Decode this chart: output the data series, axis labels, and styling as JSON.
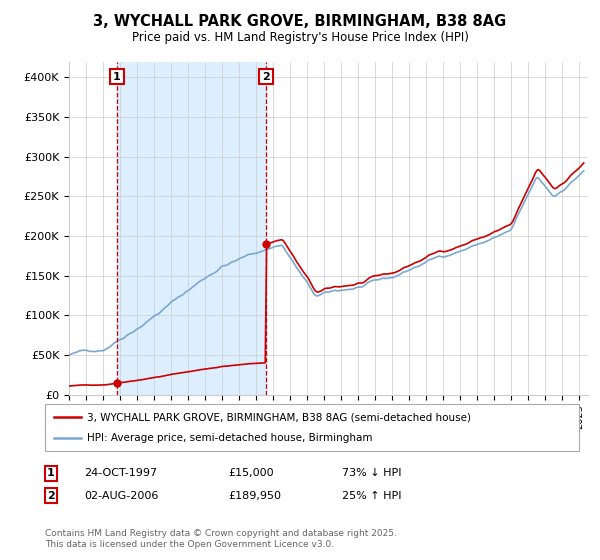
{
  "title": "3, WYCHALL PARK GROVE, BIRMINGHAM, B38 8AG",
  "subtitle": "Price paid vs. HM Land Registry's House Price Index (HPI)",
  "legend1": "3, WYCHALL PARK GROVE, BIRMINGHAM, B38 8AG (semi-detached house)",
  "legend2": "HPI: Average price, semi-detached house, Birmingham",
  "footer": "Contains HM Land Registry data © Crown copyright and database right 2025.\nThis data is licensed under the Open Government Licence v3.0.",
  "annotation1_label": "1",
  "annotation1_date": "24-OCT-1997",
  "annotation1_price": "£15,000",
  "annotation1_hpi": "73% ↓ HPI",
  "annotation2_label": "2",
  "annotation2_date": "02-AUG-2006",
  "annotation2_price": "£189,950",
  "annotation2_hpi": "25% ↑ HPI",
  "purchase1_year": 1997.82,
  "purchase1_price": 15000,
  "purchase2_year": 2006.58,
  "purchase2_price": 189950,
  "vline1_year": 1997.82,
  "vline2_year": 2006.58,
  "red_color": "#cc0000",
  "blue_color": "#7aa8d2",
  "shade_color": "#ddeeff",
  "background_color": "#ffffff",
  "grid_color": "#cccccc",
  "ylim_max": 420000,
  "xlim_min": 1995.0,
  "xlim_max": 2025.5
}
